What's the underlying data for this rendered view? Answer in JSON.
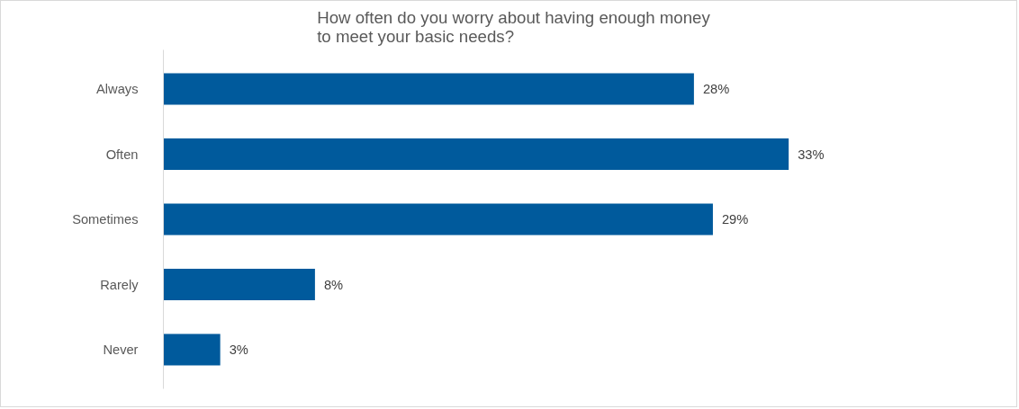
{
  "chart_data": {
    "type": "bar",
    "orientation": "horizontal",
    "title": "How often do you worry about having enough money to meet your basic needs?",
    "categories": [
      "Always",
      "Often",
      "Sometimes",
      "Rarely",
      "Never"
    ],
    "values": [
      28,
      33,
      29,
      8,
      3
    ],
    "value_labels": [
      "28%",
      "33%",
      "29%",
      "8%",
      "3%"
    ],
    "color": "#005a9c"
  }
}
